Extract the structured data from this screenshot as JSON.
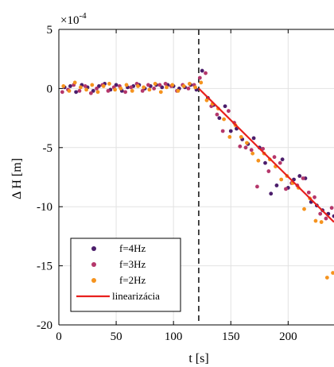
{
  "chart_data": {
    "type": "scatter",
    "xlabel": "t [s]",
    "ylabel": "Δ H [m]",
    "exponent_label": "×10",
    "exponent_power": "-4",
    "xlim": [
      0,
      240
    ],
    "ylim": [
      -20,
      5
    ],
    "x_ticks": [
      0,
      50,
      100,
      150,
      200
    ],
    "y_ticks": [
      5,
      0,
      -5,
      -10,
      -15,
      -20
    ],
    "grid": true,
    "legend_position": "bottom-left",
    "vline": {
      "x": 122,
      "style": "dashed",
      "color": "#333333"
    },
    "series": [
      {
        "name": "f=4Hz",
        "color": "#4b1d6b",
        "x": [
          5,
          10,
          15,
          20,
          25,
          30,
          35,
          40,
          45,
          50,
          55,
          60,
          65,
          70,
          75,
          80,
          85,
          90,
          95,
          100,
          105,
          110,
          115,
          120,
          125,
          130,
          135,
          140,
          145,
          150,
          155,
          160,
          165,
          170,
          175,
          180,
          185,
          190,
          195,
          200,
          205,
          210,
          215,
          220,
          225,
          230,
          235,
          240
        ],
        "y": [
          0.1,
          0.2,
          -0.3,
          0.3,
          0.1,
          -0.2,
          0.2,
          0.4,
          -0.1,
          0.3,
          -0.2,
          0.1,
          0.2,
          0.3,
          0.0,
          0.2,
          0.3,
          0.1,
          0.3,
          0.2,
          0.0,
          0.1,
          0.3,
          -0.1,
          1.5,
          -0.8,
          -1.4,
          -2.5,
          -1.5,
          -3.6,
          -3.4,
          -4.3,
          -4.7,
          -4.2,
          -5.0,
          -6.3,
          -8.9,
          -8.2,
          -6.0,
          -8.4,
          -7.7,
          -7.4,
          -7.6,
          -9.6,
          -9.9,
          -10.3,
          -10.6,
          -10.8
        ]
      },
      {
        "name": "f=3Hz",
        "color": "#b5376b",
        "x": [
          3,
          8,
          13,
          18,
          23,
          28,
          33,
          38,
          43,
          48,
          53,
          58,
          63,
          68,
          73,
          78,
          83,
          88,
          93,
          98,
          103,
          108,
          113,
          118,
          123,
          128,
          133,
          138,
          143,
          148,
          153,
          158,
          163,
          168,
          173,
          178,
          183,
          188,
          193,
          198,
          203,
          208,
          213,
          218,
          223,
          228,
          233,
          238
        ],
        "y": [
          -0.3,
          -0.1,
          0.3,
          -0.2,
          0.2,
          -0.4,
          0.0,
          0.3,
          -0.2,
          0.1,
          0.2,
          -0.3,
          0.1,
          0.4,
          -0.2,
          0.3,
          0.0,
          0.3,
          0.4,
          0.2,
          -0.2,
          0.3,
          0.0,
          0.3,
          0.9,
          1.3,
          -1.5,
          -2.2,
          -3.6,
          -1.9,
          -2.9,
          -4.9,
          -5.0,
          -5.2,
          -8.3,
          -5.1,
          -7.0,
          -5.8,
          -6.3,
          -8.5,
          -8.0,
          -8.2,
          -7.6,
          -8.8,
          -9.2,
          -10.6,
          -11.0,
          -10.1
        ]
      },
      {
        "name": "f=2Hz",
        "color": "#f5931e",
        "x": [
          4,
          9,
          14,
          19,
          24,
          29,
          34,
          39,
          44,
          49,
          54,
          59,
          64,
          69,
          74,
          79,
          84,
          89,
          94,
          99,
          104,
          109,
          114,
          119,
          124,
          129,
          134,
          139,
          144,
          149,
          154,
          159,
          164,
          169,
          174,
          179,
          184,
          189,
          194,
          199,
          204,
          209,
          214,
          219,
          224,
          229,
          234,
          239
        ],
        "y": [
          0.2,
          -0.2,
          0.5,
          0.1,
          -0.1,
          0.3,
          -0.3,
          0.2,
          0.4,
          -0.1,
          0.0,
          0.3,
          -0.2,
          0.2,
          0.1,
          -0.1,
          0.4,
          -0.3,
          0.1,
          0.3,
          -0.2,
          0.2,
          0.4,
          0.1,
          0.5,
          -1.0,
          -1.3,
          -1.7,
          -2.6,
          -4.1,
          -3.1,
          -4.1,
          -4.6,
          -5.5,
          -6.1,
          -5.5,
          -6.0,
          -6.6,
          -7.7,
          -7.4,
          -8.0,
          -8.4,
          -10.2,
          -9.3,
          -11.2,
          -11.3,
          -16.0,
          -15.6
        ]
      }
    ],
    "lines": [
      {
        "name": "linearizácia",
        "color": "#e8201d",
        "x": [
          122,
          240
        ],
        "y": [
          0.0,
          -11.3
        ]
      }
    ]
  }
}
